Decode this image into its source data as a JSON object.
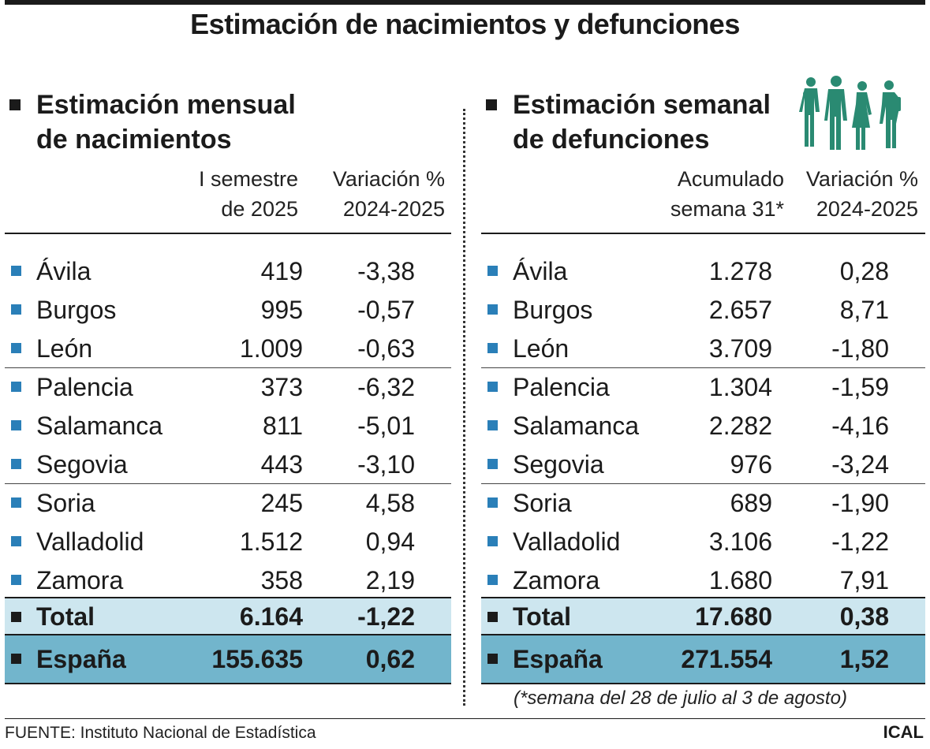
{
  "title": "Estimación de nacimientos y defunciones",
  "births": {
    "title_line1": "Estimación mensual",
    "title_line2": "de nacimientos",
    "col1_line1": "I semestre",
    "col1_line2": "de 2025",
    "col2_line1": "Variación %",
    "col2_line2": "2024-2025",
    "rows": [
      {
        "name": "Ávila",
        "value": "419",
        "variation": "-3,38"
      },
      {
        "name": "Burgos",
        "value": "995",
        "variation": "-0,57"
      },
      {
        "name": "León",
        "value": "1.009",
        "variation": "-0,63"
      },
      {
        "name": "Palencia",
        "value": "373",
        "variation": "-6,32"
      },
      {
        "name": "Salamanca",
        "value": "811",
        "variation": "-5,01"
      },
      {
        "name": "Segovia",
        "value": "443",
        "variation": "-3,10"
      },
      {
        "name": "Soria",
        "value": "245",
        "variation": "4,58"
      },
      {
        "name": "Valladolid",
        "value": "1.512",
        "variation": "0,94"
      },
      {
        "name": "Zamora",
        "value": "358",
        "variation": "2,19"
      }
    ],
    "total": {
      "name": "Total",
      "value": "6.164",
      "variation": "-1,22"
    },
    "spain": {
      "name": "España",
      "value": "155.635",
      "variation": "0,62"
    }
  },
  "deaths": {
    "title_line1": "Estimación semanal",
    "title_line2": "de defunciones",
    "col1_line1": "Acumulado",
    "col1_line2": "semana 31*",
    "col2_line1": "Variación %",
    "col2_line2": "2024-2025",
    "rows": [
      {
        "name": "Ávila",
        "value": "1.278",
        "variation": "0,28"
      },
      {
        "name": "Burgos",
        "value": "2.657",
        "variation": "8,71"
      },
      {
        "name": "León",
        "value": "3.709",
        "variation": "-1,80"
      },
      {
        "name": "Palencia",
        "value": "1.304",
        "variation": "-1,59"
      },
      {
        "name": "Salamanca",
        "value": "2.282",
        "variation": "-4,16"
      },
      {
        "name": "Segovia",
        "value": "976",
        "variation": "-3,24"
      },
      {
        "name": "Soria",
        "value": "689",
        "variation": "-1,90"
      },
      {
        "name": "Valladolid",
        "value": "3.106",
        "variation": "-1,22"
      },
      {
        "name": "Zamora",
        "value": "1.680",
        "variation": "7,91"
      }
    ],
    "total": {
      "name": "Total",
      "value": "17.680",
      "variation": "0,38"
    },
    "spain": {
      "name": "España",
      "value": "271.554",
      "variation": "1,52"
    }
  },
  "footnote": "(*semana del 28 de julio al 3 de agosto)",
  "source": "FUENTE: Instituto Nacional de Estadística",
  "brand": "ICAL",
  "colors": {
    "row_bullet": "#2a7fb8",
    "total_bg": "#cde6ef",
    "spain_bg": "#72b5cc",
    "figures": "#2a8a72"
  },
  "icons": {
    "people": "people-silhouettes-icon"
  }
}
